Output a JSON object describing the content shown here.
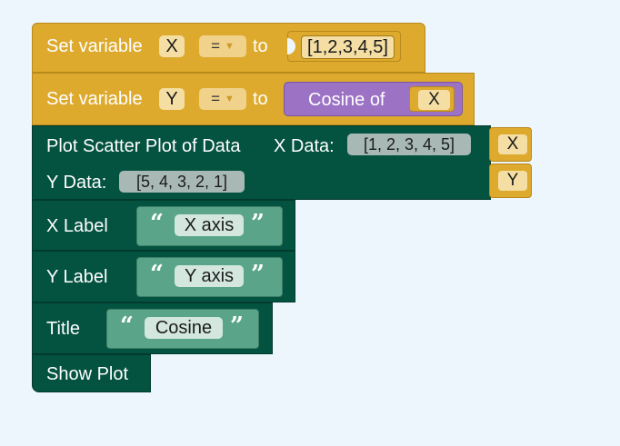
{
  "blocks": {
    "set_x": {
      "prefix": "Set variable",
      "var": "X",
      "op": "=",
      "to": "to",
      "value": "[1,2,3,4,5]"
    },
    "set_y": {
      "prefix": "Set variable",
      "var": "Y",
      "op": "=",
      "to": "to",
      "func": "Cosine of",
      "arg": "X"
    },
    "plot": {
      "title": "Plot Scatter Plot of Data",
      "x_label": "X Data:",
      "x_value": "[1, 2, 3, 4, 5]",
      "x_var": "X",
      "y_label": "Y Data:",
      "y_value": "[5, 4, 3, 2, 1]",
      "y_var": "Y"
    },
    "x_label": {
      "label": "X Label",
      "value": "X axis"
    },
    "y_label": {
      "label": "Y Label",
      "value": "Y axis"
    },
    "title": {
      "label": "Title",
      "value": "Cosine"
    },
    "show": {
      "label": "Show Plot"
    }
  },
  "colors": {
    "variable_block": "#ddaa2e",
    "plot_block": "#045240",
    "function_block": "#9c72c5",
    "string_block": "#5aa58a",
    "background": "#eef6fd"
  },
  "glyphs": {
    "open_quote": "“",
    "close_quote": "”",
    "dropdown_arrow": "▼"
  }
}
